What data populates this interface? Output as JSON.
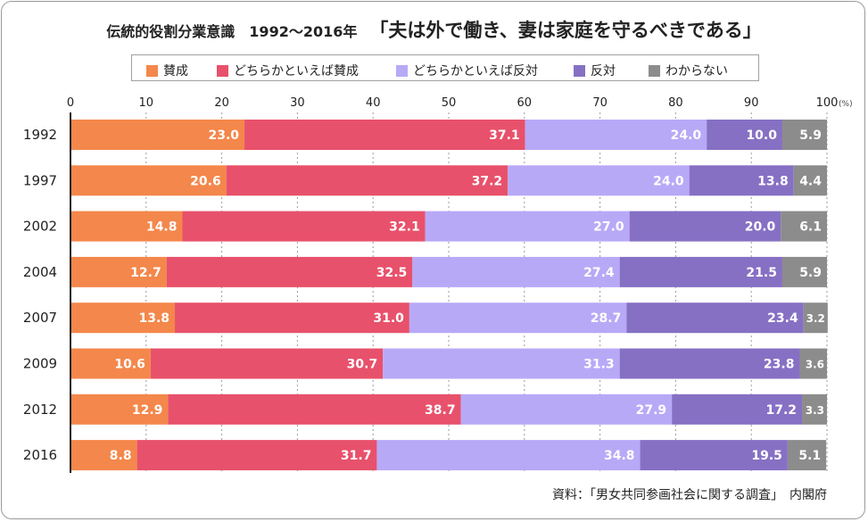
{
  "header": {
    "title": "伝統的役割分業意識　1992〜2016年",
    "subtitle": "「夫は外で働き、妻は家庭を守るべきである」"
  },
  "source": "資料：「男女共同参画社会に関する調査」　内閣府",
  "chart_data": {
    "type": "bar",
    "orientation": "horizontal",
    "stacked": true,
    "categories": [
      "1992",
      "1997",
      "2002",
      "2004",
      "2007",
      "2009",
      "2012",
      "2016"
    ],
    "xlim": [
      0,
      100
    ],
    "x_ticks": [
      0,
      10,
      20,
      30,
      40,
      50,
      60,
      70,
      80,
      90,
      100
    ],
    "x_unit": "(%)",
    "grid": "vertical-dotted",
    "legend_position": "top",
    "series": [
      {
        "name": "賛成",
        "color": "#f4874b",
        "values": [
          23.0,
          20.6,
          14.8,
          12.7,
          13.8,
          10.6,
          12.9,
          8.8
        ]
      },
      {
        "name": "どちらかといえば賛成",
        "color": "#e8516b",
        "values": [
          37.1,
          37.2,
          32.1,
          32.5,
          31.0,
          30.7,
          38.7,
          31.7
        ]
      },
      {
        "name": "どちらかといえば反対",
        "color": "#b8a9f7",
        "values": [
          24.0,
          24.0,
          27.0,
          27.4,
          28.7,
          31.3,
          27.9,
          34.8
        ]
      },
      {
        "name": "反対",
        "color": "#8670c4",
        "values": [
          10.0,
          13.8,
          20.0,
          21.5,
          23.4,
          23.8,
          17.2,
          19.5
        ]
      },
      {
        "name": "わからない",
        "color": "#8c8c8c",
        "values": [
          5.9,
          4.4,
          6.1,
          5.9,
          3.2,
          3.6,
          3.3,
          5.1
        ]
      }
    ]
  }
}
